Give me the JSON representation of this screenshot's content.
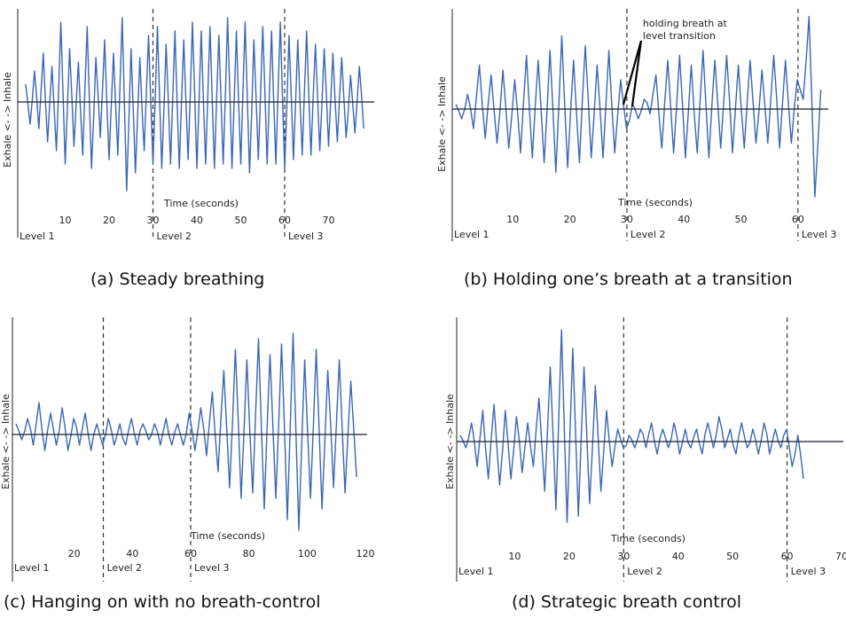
{
  "figures": [
    {
      "id": "a",
      "caption": "(a) Steady breathing"
    },
    {
      "id": "b",
      "caption": "(b) Holding one’s breath at a transition"
    },
    {
      "id": "c",
      "caption": "(c) Hanging on with no breath-control"
    },
    {
      "id": "d",
      "caption": "(d) Strategic breath control"
    }
  ],
  "chart_data": [
    {
      "type": "line",
      "title": "(a) Steady breathing",
      "xlabel": "Time (seconds)",
      "ylabel": "Exhale <-   -> Inhale",
      "xlim": [
        0,
        80
      ],
      "ylim": [
        -1.0,
        1.0
      ],
      "xticks": [
        10,
        20,
        30,
        40,
        50,
        60,
        70
      ],
      "level_boundaries": [
        30,
        60
      ],
      "level_labels": [
        "Level 1",
        "Level 2",
        "Level 3"
      ],
      "series": [
        {
          "x_start": 1,
          "x_end": 78,
          "pattern": "regular",
          "values": [
            0.2,
            -0.25,
            0.35,
            -0.3,
            0.55,
            -0.45,
            0.4,
            -0.55,
            0.9,
            -0.7,
            0.6,
            -0.5,
            0.45,
            -0.6,
            0.85,
            -0.75,
            0.5,
            -0.4,
            0.7,
            -0.65,
            0.55,
            -0.6,
            0.95,
            -1.0,
            0.6,
            -0.8,
            0.5,
            -0.55,
            0.75,
            -0.7,
            0.85,
            -0.75,
            0.65,
            -0.7,
            0.8,
            -0.75,
            0.7,
            -0.65,
            0.9,
            -0.75,
            0.8,
            -0.7,
            0.85,
            -0.75,
            0.75,
            -0.7,
            0.95,
            -0.75,
            0.8,
            -0.7,
            0.9,
            -0.8,
            0.7,
            -0.65,
            0.85,
            -0.7,
            0.8,
            -0.7,
            0.9,
            -0.75,
            0.75,
            -0.65,
            0.7,
            -0.6,
            0.8,
            -0.6,
            0.65,
            -0.55,
            0.6,
            -0.5,
            0.55,
            -0.45,
            0.5,
            -0.4,
            0.3,
            -0.35,
            0.4,
            -0.3
          ]
        }
      ]
    },
    {
      "type": "line",
      "title": "(b) Holding one’s breath at a transition",
      "xlabel": "Time (seconds)",
      "ylabel": "Exhale <-   -> Inhale",
      "xlim": [
        0,
        65
      ],
      "ylim": [
        -1.0,
        1.0
      ],
      "xticks": [
        10,
        20,
        30,
        40,
        50,
        60
      ],
      "level_boundaries": [
        30,
        60
      ],
      "level_labels": [
        "Level 1",
        "Level 2",
        "Level 3"
      ],
      "annotations": [
        {
          "text": "holding breath at level transition",
          "x": 30
        }
      ],
      "series": [
        {
          "x_start": 0,
          "x_end": 64,
          "pattern": "hold",
          "values": [
            0.05,
            -0.1,
            0.15,
            -0.2,
            0.45,
            -0.3,
            0.35,
            -0.35,
            0.4,
            -0.4,
            0.3,
            -0.45,
            0.55,
            -0.5,
            0.5,
            -0.55,
            0.6,
            -0.65,
            0.75,
            -0.6,
            0.5,
            -0.55,
            0.65,
            -0.5,
            0.45,
            -0.5,
            0.6,
            -0.45,
            0.3,
            -0.2,
            0.05,
            -0.1,
            0.1,
            -0.05,
            0.35,
            -0.4,
            0.5,
            -0.45,
            0.55,
            -0.5,
            0.45,
            -0.45,
            0.6,
            -0.5,
            0.5,
            -0.4,
            0.55,
            -0.45,
            0.45,
            -0.4,
            0.5,
            -0.35,
            0.4,
            -0.35,
            0.55,
            -0.4,
            0.5,
            -0.35,
            0.3,
            0.1,
            0.95,
            -0.9,
            0.2
          ]
        }
      ]
    },
    {
      "type": "line",
      "title": "(c) Hanging on with no breath-control",
      "xlabel": "Time (seconds)",
      "ylabel": "Exhale <-   -> Inhale",
      "xlim": [
        0,
        120
      ],
      "ylim": [
        -1.0,
        1.0
      ],
      "xticks": [
        20,
        40,
        60,
        80,
        100,
        120
      ],
      "level_boundaries": [
        30,
        60
      ],
      "level_labels": [
        "Level 1",
        "Level 2",
        "Level 3"
      ],
      "series": [
        {
          "x_start": 0,
          "x_end": 117,
          "pattern": "escalating",
          "values": [
            0.1,
            -0.05,
            0.15,
            -0.1,
            0.3,
            -0.15,
            0.2,
            -0.1,
            0.25,
            -0.15,
            0.15,
            -0.1,
            0.2,
            -0.15,
            0.1,
            -0.1,
            0.15,
            -0.1,
            0.1,
            -0.1,
            0.15,
            -0.1,
            0.1,
            -0.05,
            0.1,
            -0.1,
            0.15,
            -0.1,
            0.1,
            -0.1,
            0.2,
            -0.15,
            0.25,
            -0.2,
            0.4,
            -0.35,
            0.6,
            -0.5,
            0.8,
            -0.6,
            0.7,
            -0.55,
            0.9,
            -0.7,
            0.75,
            -0.6,
            0.85,
            -0.8,
            0.95,
            -0.9,
            0.7,
            -0.6,
            0.8,
            -0.7,
            0.6,
            -0.5,
            0.7,
            -0.55,
            0.5,
            -0.4
          ]
        }
      ]
    },
    {
      "type": "line",
      "title": "(d) Strategic breath control",
      "xlabel": "Time (seconds)",
      "ylabel": "Exhale <-   -> Inhale",
      "xlim": [
        0,
        70
      ],
      "ylim": [
        -1.0,
        1.0
      ],
      "xticks": [
        10,
        20,
        30,
        40,
        50,
        60,
        70
      ],
      "level_boundaries": [
        30,
        60
      ],
      "level_labels": [
        "Level 1",
        "Level 2",
        "Level 3"
      ],
      "series": [
        {
          "x_start": 0,
          "x_end": 63,
          "pattern": "controlled",
          "values": [
            0.05,
            -0.05,
            0.15,
            -0.2,
            0.25,
            -0.3,
            0.3,
            -0.35,
            0.25,
            -0.3,
            0.2,
            -0.25,
            0.15,
            -0.2,
            0.35,
            -0.4,
            0.6,
            -0.55,
            0.9,
            -0.65,
            0.75,
            -0.6,
            0.6,
            -0.5,
            0.45,
            -0.4,
            0.25,
            -0.2,
            0.1,
            -0.05,
            0.05,
            -0.05,
            0.1,
            -0.05,
            0.15,
            -0.1,
            0.1,
            -0.05,
            0.15,
            -0.1,
            0.1,
            -0.05,
            0.1,
            -0.1,
            0.15,
            -0.05,
            0.2,
            -0.05,
            0.1,
            -0.1,
            0.15,
            -0.05,
            0.1,
            -0.1,
            0.15,
            -0.1,
            0.1,
            -0.05,
            0.1,
            -0.2,
            0.05,
            -0.3
          ]
        }
      ]
    }
  ]
}
